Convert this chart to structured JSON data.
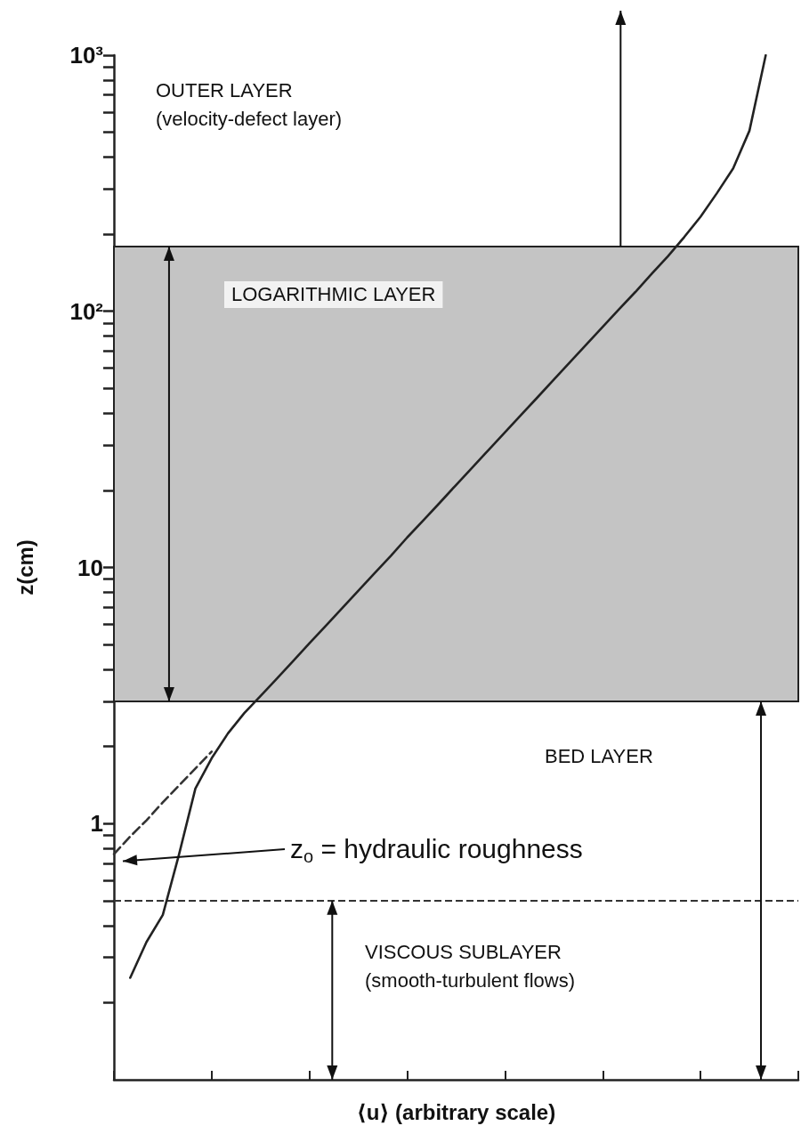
{
  "chart_data": {
    "type": "line",
    "xlabel": "⟨u⟩ (arbitrary scale)",
    "ylabel": "z(cm)",
    "log": "y",
    "ylim": [
      0.1,
      1000
    ],
    "yticks": [
      {
        "value": 0.2,
        "label": null
      },
      {
        "value": 0.3,
        "label": null
      },
      {
        "value": 0.4,
        "label": null
      },
      {
        "value": 0.5,
        "label": null
      },
      {
        "value": 0.6,
        "label": null
      },
      {
        "value": 0.7,
        "label": null
      },
      {
        "value": 0.8,
        "label": null
      },
      {
        "value": 0.9,
        "label": null
      },
      1,
      {
        "value": 2,
        "label": null
      },
      {
        "value": 3,
        "label": null
      },
      {
        "value": 4,
        "label": null
      },
      {
        "value": 5,
        "label": null
      },
      {
        "value": 6,
        "label": null
      },
      {
        "value": 7,
        "label": null
      },
      {
        "value": 8,
        "label": null
      },
      {
        "value": 9,
        "label": null
      },
      10,
      {
        "value": 20,
        "label": null
      },
      {
        "value": 30,
        "label": null
      },
      {
        "value": 40,
        "label": null
      },
      {
        "value": 50,
        "label": null
      },
      {
        "value": 60,
        "label": null
      },
      {
        "value": 70,
        "label": null
      },
      {
        "value": 80,
        "label": null
      },
      {
        "value": 90,
        "label": null
      },
      {
        "value": 100,
        "label": "10²"
      },
      {
        "value": 200,
        "label": null
      },
      {
        "value": 300,
        "label": null
      },
      {
        "value": 400,
        "label": null
      },
      {
        "value": 500,
        "label": null
      },
      {
        "value": 600,
        "label": null
      },
      {
        "value": 700,
        "label": null
      },
      {
        "value": 800,
        "label": null
      },
      {
        "value": 900,
        "label": null
      },
      {
        "value": 1000,
        "label": "10³"
      }
    ],
    "tick_labels": "y",
    "grid": false,
    "marker": "none",
    "categories": [
      null,
      null,
      null,
      null,
      null,
      null,
      null,
      null,
      null,
      null,
      null,
      null,
      null,
      null,
      null,
      null,
      null,
      null,
      null,
      null,
      null,
      null,
      null,
      null,
      null,
      null,
      null,
      null,
      null,
      null,
      null,
      null,
      null,
      null,
      null,
      null,
      null,
      null,
      null,
      null,
      null,
      null,
      null
    ],
    "series": [
      {
        "color": "#222222",
        "line_style": "solid",
        "values": [
          null,
          0.25,
          0.345,
          0.44,
          0.76,
          1.37,
          1.8,
          2.25,
          2.7,
          3.15,
          3.68,
          4.31,
          5.06,
          5.92,
          6.93,
          8.12,
          9.5,
          11.1,
          13.1,
          15.3,
          17.9,
          21,
          24.6,
          28.8,
          33.7,
          39.5,
          46.2,
          54.2,
          63.4,
          74.3,
          87,
          102,
          119,
          140,
          164,
          195,
          234,
          289,
          361,
          507,
          1000,
          null,
          null
        ]
      },
      {
        "color": "#333333",
        "line_style": "dashed",
        "values": [
          0.76,
          0.89,
          1.03,
          1.21,
          1.41,
          1.64,
          1.91,
          null,
          null,
          null,
          null,
          null,
          null,
          null,
          null,
          null,
          null,
          null,
          null,
          null,
          null,
          null,
          null,
          null,
          null,
          null,
          null,
          null,
          null,
          null,
          null,
          null,
          null,
          null,
          null,
          null,
          null,
          null,
          null,
          null,
          null,
          null,
          null
        ]
      }
    ],
    "bands": [
      {
        "axis": "y",
        "from": 3,
        "to": 179,
        "label": "LOGARITHMIC LAYER",
        "color": "#c4c4c4"
      }
    ],
    "ref_lines": [
      {
        "axis": "y",
        "value": 0.5,
        "line_style": "dashed",
        "color": "#333333"
      }
    ],
    "annotations": [
      "OUTER LAYER\n(velocity-defect layer)",
      "BED LAYER",
      "VISCOUS SUBLAYER\n(smooth-turbulent flows)",
      "z$_{o}$ = hydraulic roughness"
    ]
  }
}
